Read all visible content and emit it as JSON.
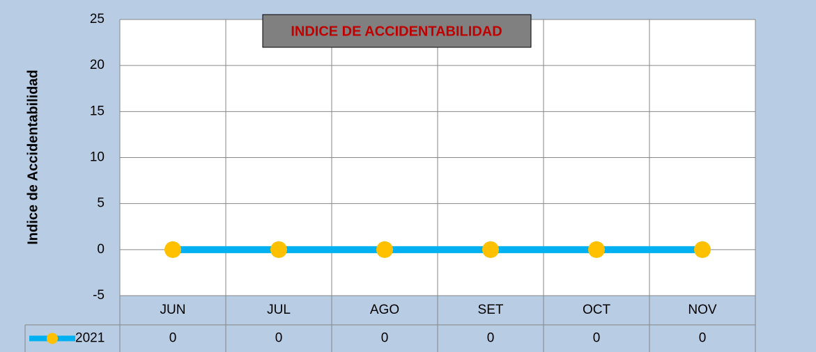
{
  "chart_data": {
    "type": "line",
    "title": "INDICE DE ACCIDENTABILIDAD",
    "y_label": "Indice de Accidentabilidad",
    "categories": [
      "JUN",
      "JUL",
      "AGO",
      "SET",
      "OCT",
      "NOV"
    ],
    "series": [
      {
        "name": "2021",
        "color": "#00b0f0",
        "marker_color": "#ffc000",
        "values": [
          0,
          0,
          0,
          0,
          0,
          0
        ]
      }
    ],
    "ylim": [
      -5,
      25
    ],
    "yticks": [
      -5,
      0,
      5,
      10,
      15,
      20,
      25
    ],
    "grid": true,
    "data_table": true
  }
}
